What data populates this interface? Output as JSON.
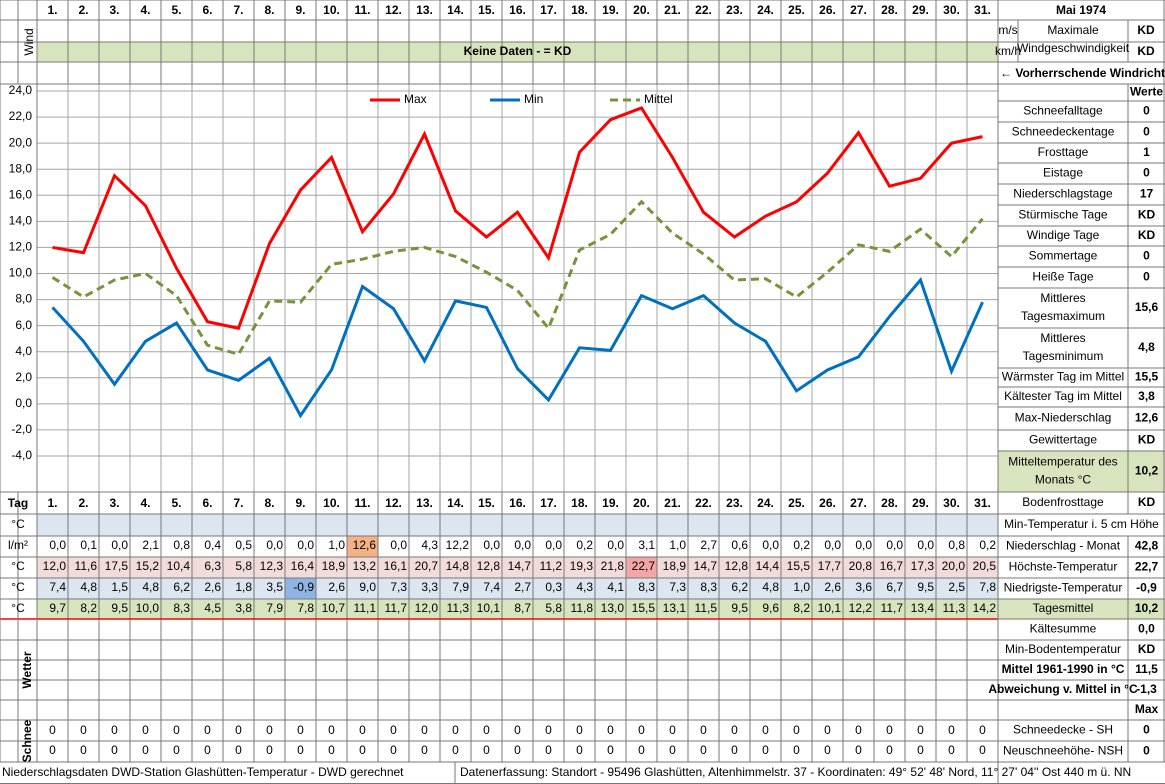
{
  "chart_data": {
    "type": "line",
    "categories": [
      "1.",
      "2.",
      "3.",
      "4.",
      "5.",
      "6.",
      "7.",
      "8.",
      "9.",
      "10.",
      "11.",
      "12.",
      "13.",
      "14.",
      "15.",
      "16.",
      "17.",
      "18.",
      "19.",
      "20.",
      "21.",
      "22.",
      "23.",
      "24.",
      "25.",
      "26.",
      "27.",
      "28.",
      "29.",
      "30.",
      "31."
    ],
    "series": [
      {
        "name": "Max",
        "color": "#ff0000",
        "style": "solid",
        "values": [
          12.0,
          11.6,
          17.5,
          15.2,
          10.4,
          6.3,
          5.8,
          12.3,
          16.4,
          18.9,
          13.2,
          16.1,
          20.7,
          14.8,
          12.8,
          14.7,
          11.2,
          19.3,
          21.8,
          22.7,
          18.9,
          14.7,
          12.8,
          14.4,
          15.5,
          17.7,
          20.8,
          16.7,
          17.3,
          20.0,
          20.5
        ],
        "value_labels": [
          "12,0",
          "11,6",
          "17,5",
          "15,2",
          "10,4",
          "6,3",
          "5,8",
          "12,3",
          "16,4",
          "18,9",
          "13,2",
          "16,1",
          "20,7",
          "14,8",
          "12,8",
          "14,7",
          "11,2",
          "19,3",
          "21,8",
          "22,7",
          "18,9",
          "14,7",
          "12,8",
          "14,4",
          "15,5",
          "17,7",
          "20,8",
          "16,7",
          "17,3",
          "20,0",
          "20,5"
        ]
      },
      {
        "name": "Min",
        "color": "#0070c0",
        "style": "solid",
        "values": [
          7.4,
          4.8,
          1.5,
          4.8,
          6.2,
          2.6,
          1.8,
          3.5,
          -0.9,
          2.6,
          9.0,
          7.3,
          3.3,
          7.9,
          7.4,
          2.7,
          0.3,
          4.3,
          4.1,
          8.3,
          7.3,
          8.3,
          6.2,
          4.8,
          1.0,
          2.6,
          3.6,
          6.7,
          9.5,
          2.5,
          7.8
        ],
        "value_labels": [
          "7,4",
          "4,8",
          "1,5",
          "4,8",
          "6,2",
          "2,6",
          "1,8",
          "3,5",
          "-0,9",
          "2,6",
          "9,0",
          "7,3",
          "3,3",
          "7,9",
          "7,4",
          "2,7",
          "0,3",
          "4,3",
          "4,1",
          "8,3",
          "7,3",
          "8,3",
          "6,2",
          "4,8",
          "1,0",
          "2,6",
          "3,6",
          "6,7",
          "9,5",
          "2,5",
          "7,8"
        ]
      },
      {
        "name": "Mittel",
        "color": "#77933c",
        "style": "dashed",
        "values": [
          9.7,
          8.2,
          9.5,
          10.0,
          8.3,
          4.5,
          3.8,
          7.9,
          7.8,
          10.7,
          11.1,
          11.7,
          12.0,
          11.3,
          10.1,
          8.7,
          5.8,
          11.8,
          13.0,
          15.5,
          13.1,
          11.5,
          9.5,
          9.6,
          8.2,
          10.1,
          12.2,
          11.7,
          13.4,
          11.3,
          14.2
        ],
        "value_labels": [
          "9,7",
          "8,2",
          "9,5",
          "10,0",
          "8,3",
          "4,5",
          "3,8",
          "7,9",
          "7,8",
          "10,7",
          "11,1",
          "11,7",
          "12,0",
          "11,3",
          "10,1",
          "8,7",
          "5,8",
          "11,8",
          "13,0",
          "15,5",
          "13,1",
          "11,5",
          "9,5",
          "9,6",
          "8,2",
          "10,1",
          "12,2",
          "11,7",
          "13,4",
          "11,3",
          "14,2"
        ]
      }
    ],
    "ylim": [
      -4,
      24
    ],
    "yticks": [
      {
        "value": 24,
        "label": "24,0"
      },
      {
        "value": 22,
        "label": "22,0"
      },
      {
        "value": 20,
        "label": "20,0"
      },
      {
        "value": 18,
        "label": "18,0"
      },
      {
        "value": 16,
        "label": "16,0"
      },
      {
        "value": 14,
        "label": "14,0"
      },
      {
        "value": 12,
        "label": "12,0"
      },
      {
        "value": 10,
        "label": "10,0"
      },
      {
        "value": 8,
        "label": "8,0"
      },
      {
        "value": 6,
        "label": "6,0"
      },
      {
        "value": 4,
        "label": "4,0"
      },
      {
        "value": 2,
        "label": "2,0"
      },
      {
        "value": 0,
        "label": "0,0"
      },
      {
        "value": -2,
        "label": "-2,0"
      },
      {
        "value": -4,
        "label": "-4,0"
      }
    ],
    "grid": true,
    "legend": "top"
  },
  "header": {
    "month": "Mai 1974",
    "wind_label": "Wind",
    "unit_ms": "m/s",
    "unit_kmh": "km/h",
    "max_wind_label": [
      "Maximale",
      "Windgeschwindigkeit"
    ],
    "max_wind_ms": "KD",
    "max_wind_kmh": "KD",
    "no_data_note": "Keine Daten -  = KD",
    "wind_direction_label": "← Vorherrschende Windrichtung"
  },
  "table": {
    "day_label": "Tag",
    "rows": [
      {
        "unit": "°C"
      },
      {
        "unit": "l/m²",
        "values": [
          "0,0",
          "0,1",
          "0,0",
          "2,1",
          "0,8",
          "0,4",
          "0,5",
          "0,0",
          "0,0",
          "1,0",
          "12,6",
          "0,0",
          "4,3",
          "12,2",
          "0,0",
          "0,0",
          "0,0",
          "0,2",
          "0,0",
          "3,1",
          "1,0",
          "2,7",
          "0,6",
          "0,0",
          "0,2",
          "0,0",
          "0,0",
          "0,0",
          "0,0",
          "0,8",
          "0,2"
        ]
      },
      {
        "unit": "°C"
      },
      {
        "unit": "°C"
      },
      {
        "unit": "°C"
      }
    ],
    "weather_label": "Wetter",
    "snow_label": "Schnee",
    "snow_rows": [
      [
        0,
        0,
        0,
        0,
        0,
        0,
        0,
        0,
        0,
        0,
        0,
        0,
        0,
        0,
        0,
        0,
        0,
        0,
        0,
        0,
        0,
        0,
        0,
        0,
        0,
        0,
        0,
        0,
        0,
        0,
        0
      ],
      [
        0,
        0,
        0,
        0,
        0,
        0,
        0,
        0,
        0,
        0,
        0,
        0,
        0,
        0,
        0,
        0,
        0,
        0,
        0,
        0,
        0,
        0,
        0,
        0,
        0,
        0,
        0,
        0,
        0,
        0,
        0
      ]
    ]
  },
  "stats": [
    {
      "value": "Werte"
    },
    {
      "label": "Schneefalltage",
      "value": 0
    },
    {
      "label": "Schneedeckentage",
      "value": 0
    },
    {
      "label": "Frosttage",
      "value": 1
    },
    {
      "label": "Eistage",
      "value": 0
    },
    {
      "label": "Niederschlagstage",
      "value": 17
    },
    {
      "label": "Stürmische Tage",
      "value": "KD"
    },
    {
      "label": "Windige Tage",
      "value": "KD"
    },
    {
      "label": "Sommertage",
      "value": 0
    },
    {
      "label": "Heiße Tage",
      "value": 0
    },
    {
      "label": [
        "Mittleres",
        "Tagesmaximum"
      ],
      "value": "15,6"
    },
    {
      "label": [
        "Mittleres",
        "Tagesminimum"
      ],
      "value": "4,8"
    },
    {
      "label": "Wärmster Tag im Mittel",
      "value": "15,5"
    },
    {
      "label": "Kältester Tag im Mittel",
      "value": "3,8"
    },
    {
      "label": "Max-Niederschlag",
      "value": "12,6"
    },
    {
      "label": "Gewittertage",
      "value": "KD"
    },
    {
      "label": [
        "Mitteltemperatur des",
        "Monats °C"
      ],
      "value": "10,2"
    },
    {
      "label": "Bodenfrosttage",
      "value": "KD"
    },
    {
      "label": "Min-Temperatur i. 5 cm Höhe"
    },
    {
      "label": "Niederschlag - Monat",
      "value": "42,8"
    },
    {
      "label": "Höchste-Temperatur",
      "value": "22,7"
    },
    {
      "label": "Niedrigste-Temperatur",
      "value": "-0,9"
    },
    {
      "label": "Tagesmittel",
      "value": "10,2"
    },
    {
      "label": "Kältesumme",
      "value": "0,0"
    },
    {
      "label": "Min-Bodentemperatur",
      "value": "KD"
    },
    {
      "label": "Mittel 1961-1990 in °C",
      "value": "11,5"
    },
    {
      "label": "Abweichung v. Mittel in °C",
      "value": "-1,3"
    },
    {
      "value": "Max"
    },
    {
      "label": "Schneedecke -   SH",
      "value": 0
    },
    {
      "label": "Neuschneehöhe- NSH",
      "value": 0
    }
  ],
  "footer": {
    "left": "Niederschlagsdaten DWD-Station Glashütten-Temperatur -  DWD gerechnet",
    "right": "Datenerfassung: Standort -   95496  Glashütten, Altenhimmelstr. 37 - Koordinaten:  49° 52' 48' Nord,   11° 27' 04'' Ost   440 m ü. NN"
  }
}
